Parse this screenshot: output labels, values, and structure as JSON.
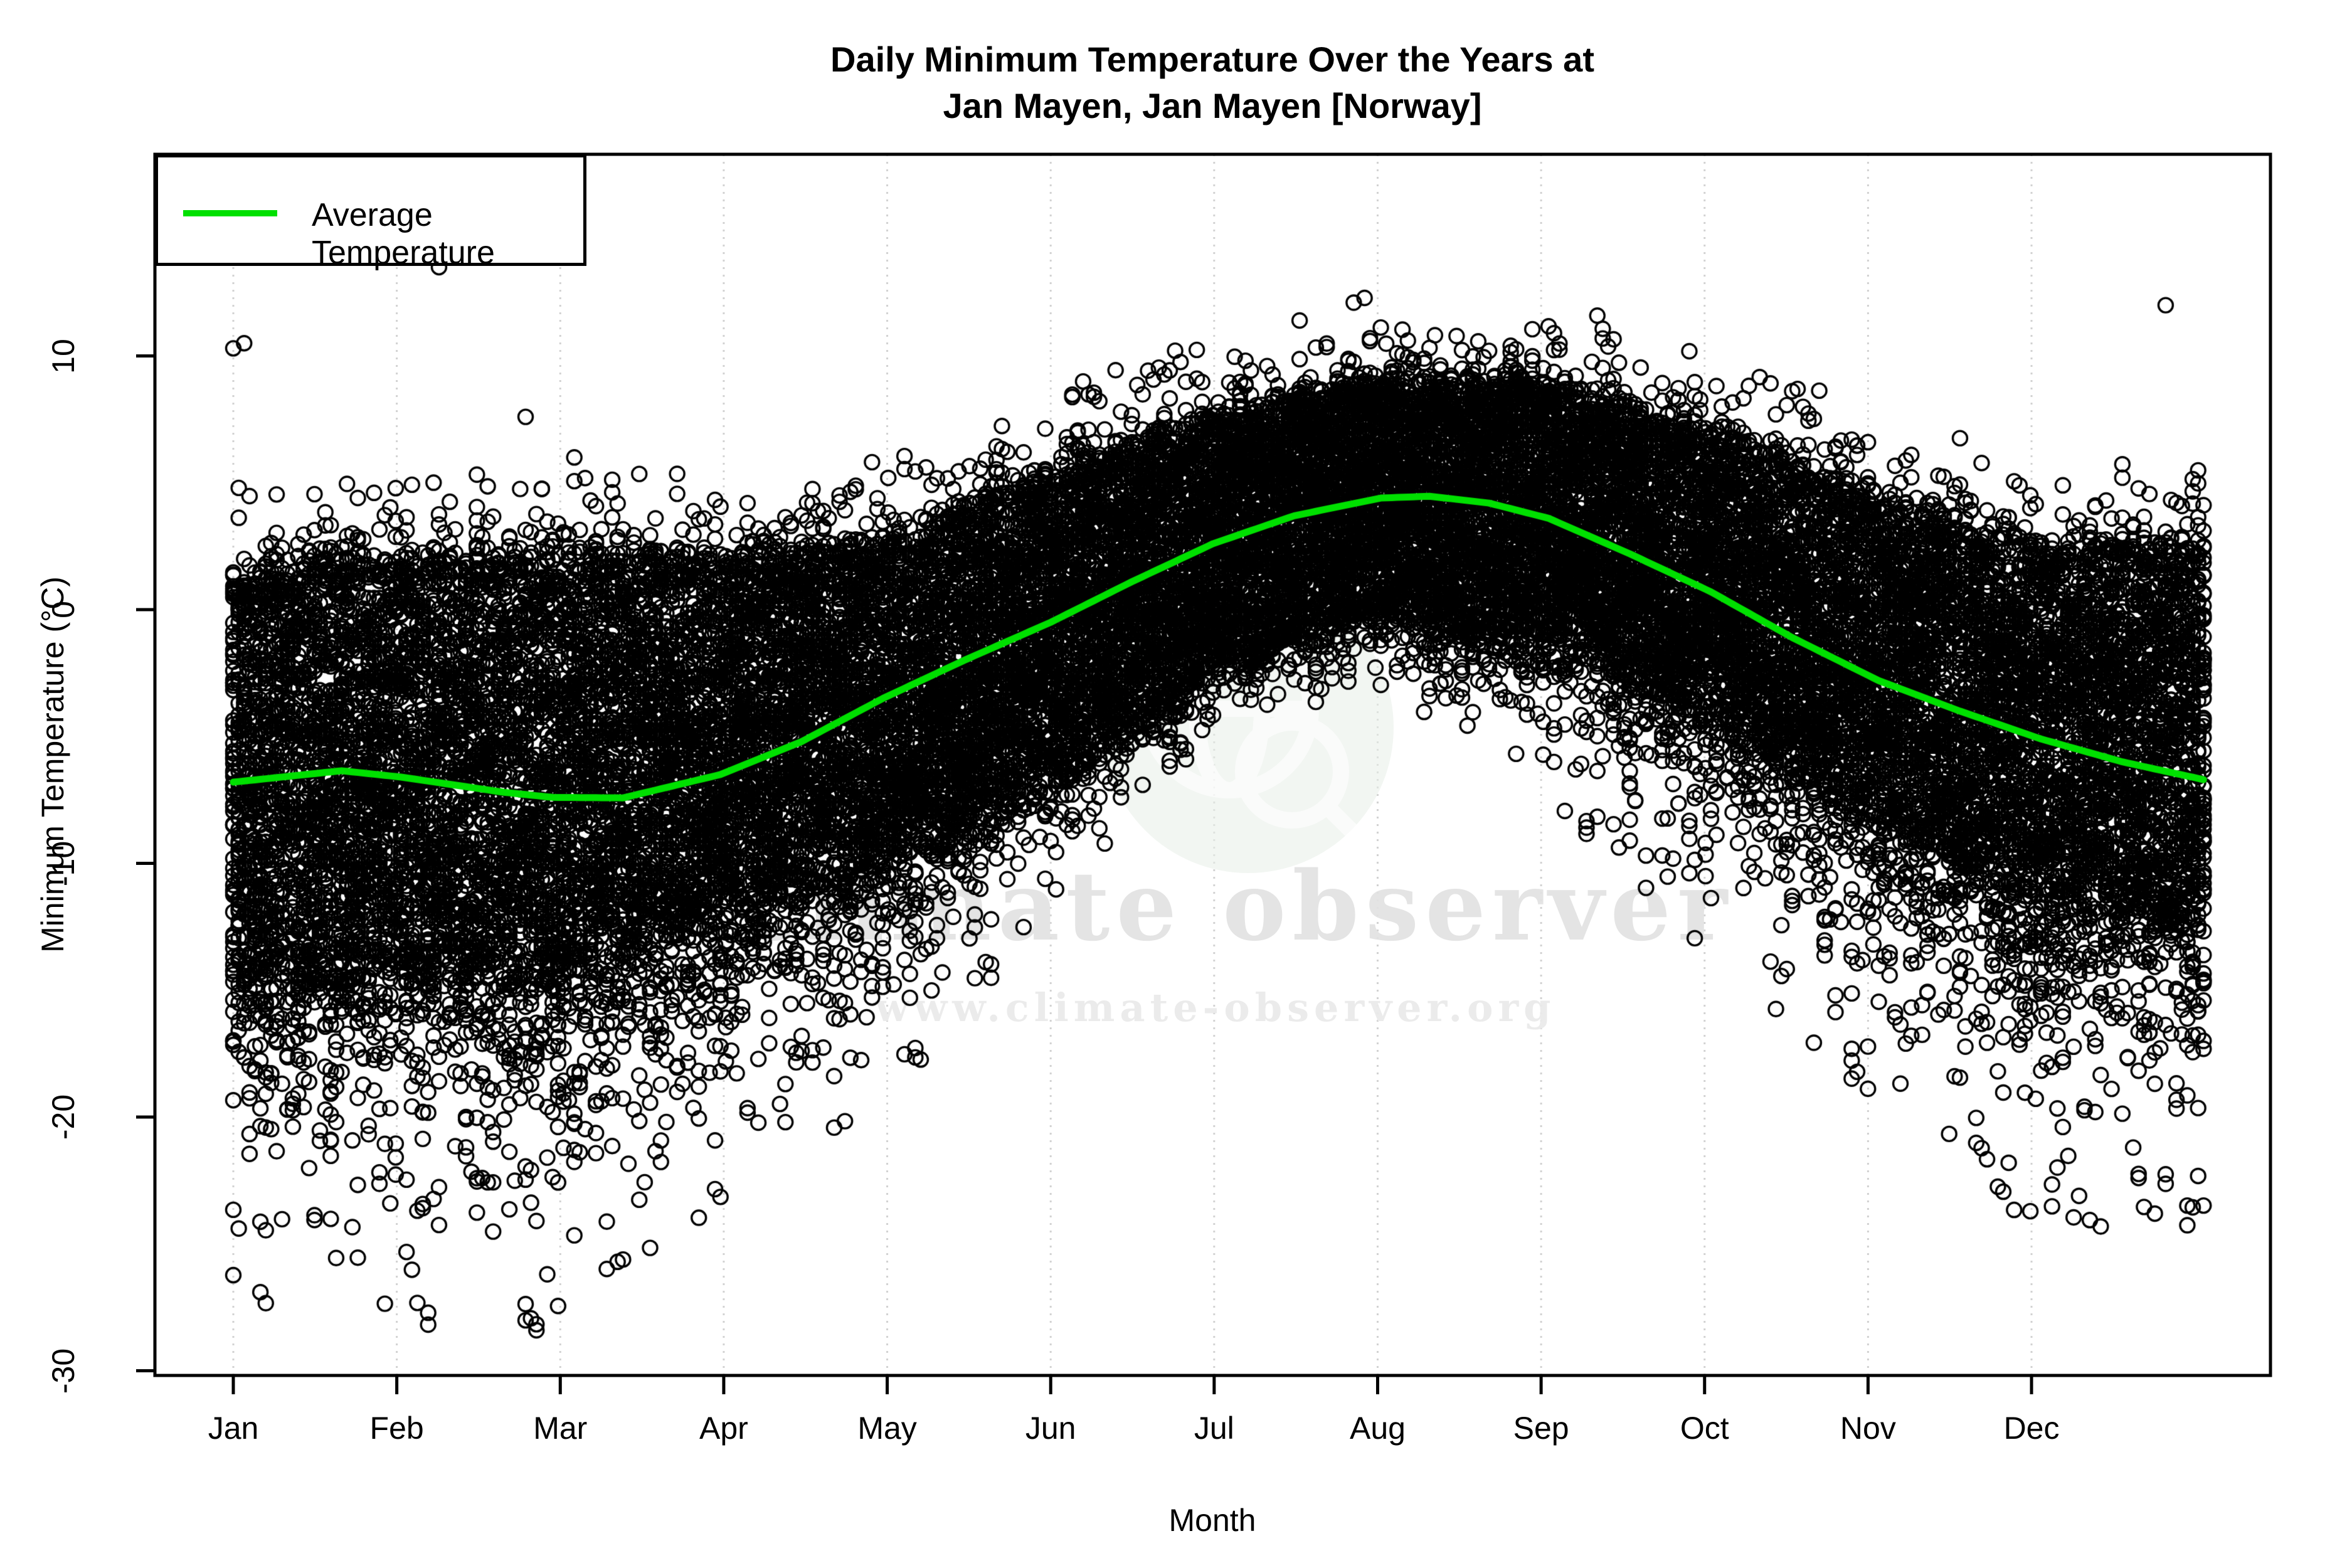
{
  "title": {
    "line1": "Daily Minimum Temperature Over the Years at",
    "line2": "Jan Mayen, Jan Mayen [Norway]"
  },
  "axes": {
    "x_label": "Month",
    "y_label": "Minimum Temperature (°C)",
    "x_ticks": [
      "Jan",
      "Feb",
      "Mar",
      "Apr",
      "May",
      "Jun",
      "Jul",
      "Aug",
      "Sep",
      "Oct",
      "Nov",
      "Dec"
    ],
    "y_ticks": [
      10,
      0,
      -10,
      -20,
      -30
    ],
    "grid": "vertical dotted gridlines at month ticks"
  },
  "legend": {
    "label": "Average Temperature",
    "position": "top-left"
  },
  "watermark": {
    "brand": "climate observer",
    "url": "www.climate-observer.org",
    "logo": "globe-with-magnifier-icon"
  },
  "colors": {
    "point": "#000000",
    "average_line": "#00e000",
    "gridline": "#d2d2d2",
    "frame": "#000000",
    "watermark_text": "#e2e2e2",
    "watermark_logo_bg": "#e8efe8",
    "watermark_logo_stroke": "#ffffff"
  },
  "chart_data": {
    "type": "scatter",
    "title": "Daily Minimum Temperature Over the Years at Jan Mayen, Jan Mayen [Norway]",
    "xlabel": "Month",
    "ylabel": "Minimum Temperature (°C)",
    "x_unit": "day of year (Jan 1 = 0)",
    "ylim": [
      -30.2,
      17.9
    ],
    "marker": "open-circle",
    "n_years_overplotted": 74,
    "legend_entries": [
      "Average Temperature"
    ],
    "average_temperature_curve": [
      {
        "day": 0,
        "t": -6.8
      },
      {
        "day": 20,
        "t": -6.35
      },
      {
        "day": 31,
        "t": -6.6
      },
      {
        "day": 50,
        "t": -7.2
      },
      {
        "day": 59,
        "t": -7.4
      },
      {
        "day": 72,
        "t": -7.42
      },
      {
        "day": 90,
        "t": -6.5
      },
      {
        "day": 105,
        "t": -5.2
      },
      {
        "day": 120,
        "t": -3.5
      },
      {
        "day": 135,
        "t": -2.0
      },
      {
        "day": 151,
        "t": -0.5
      },
      {
        "day": 166,
        "t": 1.1
      },
      {
        "day": 181,
        "t": 2.6
      },
      {
        "day": 196,
        "t": 3.7
      },
      {
        "day": 212,
        "t": 4.4
      },
      {
        "day": 221,
        "t": 4.47
      },
      {
        "day": 232,
        "t": 4.2
      },
      {
        "day": 243,
        "t": 3.6
      },
      {
        "day": 258,
        "t": 2.2
      },
      {
        "day": 273,
        "t": 0.7
      },
      {
        "day": 288,
        "t": -1.1
      },
      {
        "day": 304,
        "t": -2.8
      },
      {
        "day": 319,
        "t": -4.0
      },
      {
        "day": 334,
        "t": -5.1
      },
      {
        "day": 349,
        "t": -6.0
      },
      {
        "day": 364,
        "t": -6.7
      }
    ],
    "monthly_average": [
      -6.8,
      -6.6,
      -7.4,
      -6.5,
      -3.5,
      -0.5,
      2.6,
      4.4,
      3.6,
      0.7,
      -2.8,
      -5.1
    ],
    "scatter_envelope": {
      "boundary_days": [
        0,
        31,
        59,
        90,
        120,
        151,
        181,
        212,
        243,
        273,
        304,
        334,
        364
      ],
      "dense_top": [
        1.6,
        2.0,
        2.2,
        2.0,
        2.8,
        5.3,
        7.6,
        9.1,
        8.9,
        7.0,
        4.3,
        2.5,
        2.8
      ],
      "dense_bottom": [
        -14.4,
        -14.5,
        -14.4,
        -12.0,
        -9.6,
        -6.0,
        -1.8,
        0.5,
        -0.8,
        -4.2,
        -8.4,
        -11.4,
        -12.5
      ],
      "sparse_min": [
        -23,
        -24,
        -24,
        -20,
        -16,
        -9.5,
        -4.0,
        -2.0,
        -5.5,
        -12,
        -17.5,
        -21,
        -22
      ],
      "abs_min": [
        -27.5,
        -28.3,
        -28.5,
        -24,
        -20.5,
        -11.5,
        -5.0,
        -3.0,
        -7.3,
        -14.5,
        -19.5,
        -24.5,
        -24.5
      ]
    },
    "outliers": [
      {
        "day": 0,
        "t": 10.3
      },
      {
        "day": 2,
        "t": 10.5
      },
      {
        "day": 23,
        "t": 4.4
      },
      {
        "day": 38,
        "t": 13.5
      },
      {
        "day": 54,
        "t": 7.6
      },
      {
        "day": 63,
        "t": 6.0
      },
      {
        "day": 66,
        "t": 4.3
      },
      {
        "day": 159,
        "t": 6.6
      },
      {
        "day": 232,
        "t": 10.2
      },
      {
        "day": 236,
        "t": 10.4
      },
      {
        "day": 338,
        "t": 4.9
      },
      {
        "day": 349,
        "t": 5.2
      },
      {
        "day": 357,
        "t": 12.0
      }
    ]
  }
}
